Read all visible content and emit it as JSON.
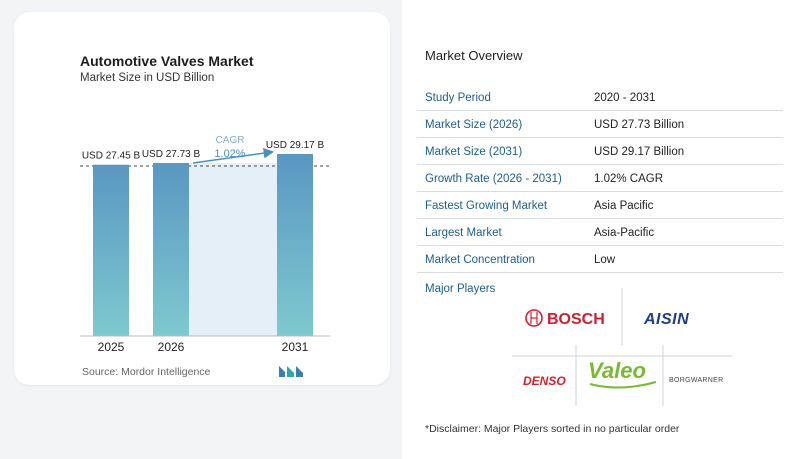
{
  "chart": {
    "title": "Automotive Valves Market",
    "subtitle": "Market Size in USD Billion",
    "source": "Source:  Mordor Intelligence",
    "cagr_label": "CAGR",
    "cagr_value": "1.02%",
    "colors": {
      "bar_top": "#5a97c2",
      "bar_bottom": "#7ec9cf",
      "band": "#e5eff8",
      "arrow": "#4a8fbf"
    }
  },
  "chart_data": {
    "type": "bar",
    "categories": [
      "2025",
      "2026",
      "2031"
    ],
    "values": [
      27.45,
      27.73,
      29.17
    ],
    "data_labels": [
      "USD 27.45 B",
      "USD 27.73 B",
      "USD 29.17 B"
    ],
    "ylim": [
      0,
      29.17
    ],
    "title": "Automotive Valves Market",
    "subtitle": "Market Size in USD Billion",
    "xlabel": "",
    "ylabel": ""
  },
  "overview": {
    "title": "Market Overview",
    "rows": [
      {
        "label": "Study Period",
        "value": "2020 - 2031"
      },
      {
        "label": "Market Size (2026)",
        "value": "USD 27.73 Billion"
      },
      {
        "label": "Market Size (2031)",
        "value": "USD 29.17 Billion"
      },
      {
        "label": "Growth Rate (2026 - 2031)",
        "value": "1.02% CAGR"
      },
      {
        "label": "Fastest Growing Market",
        "value": "Asia Pacific"
      },
      {
        "label": "Largest Market",
        "value": "Asia-Pacific"
      },
      {
        "label": "Market Concentration",
        "value": "Low"
      }
    ],
    "players_title": "Major Players",
    "players": [
      "BOSCH",
      "AISIN",
      "DENSO",
      "Valeo",
      "BORGWARNER"
    ],
    "disclaimer": "*Disclaimer: Major Players sorted in no particular order",
    "colors": {
      "label": "#1f5e8c",
      "bosch_red": "#d0202e",
      "aisin_blue": "#1b3d8f",
      "denso_red": "#d6202a",
      "valeo_green": "#7ab934"
    }
  }
}
